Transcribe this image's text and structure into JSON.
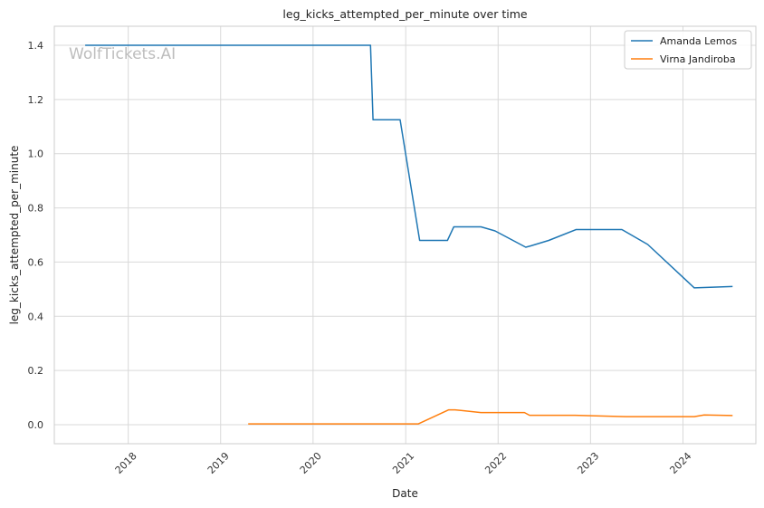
{
  "watermark": "WolfTickets.AI",
  "chart_data": {
    "type": "line",
    "title": "leg_kicks_attempted_per_minute over time",
    "xlabel": "Date",
    "ylabel": "leg_kicks_attempted_per_minute",
    "xlim": [
      "2017-03-15",
      "2024-10-15"
    ],
    "ylim": [
      -0.07,
      1.47
    ],
    "x_ticks": [
      "2018",
      "2019",
      "2020",
      "2021",
      "2022",
      "2023",
      "2024"
    ],
    "y_ticks": [
      "0.0",
      "0.2",
      "0.4",
      "0.6",
      "0.8",
      "1.0",
      "1.2",
      "1.4"
    ],
    "grid": true,
    "legend_position": "top-right",
    "series": [
      {
        "name": "Amanda Lemos",
        "color": "#1f77b4",
        "points": [
          [
            "2017-07-15",
            1.4
          ],
          [
            "2020-08-15",
            1.4
          ],
          [
            "2020-08-25",
            1.125
          ],
          [
            "2020-12-10",
            1.125
          ],
          [
            "2021-02-25",
            0.68
          ],
          [
            "2021-06-15",
            0.68
          ],
          [
            "2021-07-10",
            0.73
          ],
          [
            "2021-10-25",
            0.73
          ],
          [
            "2021-12-20",
            0.715
          ],
          [
            "2022-04-20",
            0.655
          ],
          [
            "2022-05-10",
            0.66
          ],
          [
            "2022-07-20",
            0.68
          ],
          [
            "2022-11-05",
            0.72
          ],
          [
            "2023-05-05",
            0.72
          ],
          [
            "2023-08-15",
            0.665
          ],
          [
            "2024-02-15",
            0.505
          ],
          [
            "2024-07-15",
            0.51
          ]
        ]
      },
      {
        "name": "Virna Jandiroba",
        "color": "#ff7f0e",
        "points": [
          [
            "2019-04-20",
            0.003
          ],
          [
            "2021-02-20",
            0.003
          ],
          [
            "2021-06-20",
            0.055
          ],
          [
            "2021-07-15",
            0.055
          ],
          [
            "2021-10-25",
            0.045
          ],
          [
            "2022-04-15",
            0.045
          ],
          [
            "2022-05-05",
            0.035
          ],
          [
            "2022-10-25",
            0.035
          ],
          [
            "2023-05-20",
            0.03
          ],
          [
            "2024-02-15",
            0.03
          ],
          [
            "2024-03-25",
            0.036
          ],
          [
            "2024-07-15",
            0.034
          ]
        ]
      }
    ]
  }
}
